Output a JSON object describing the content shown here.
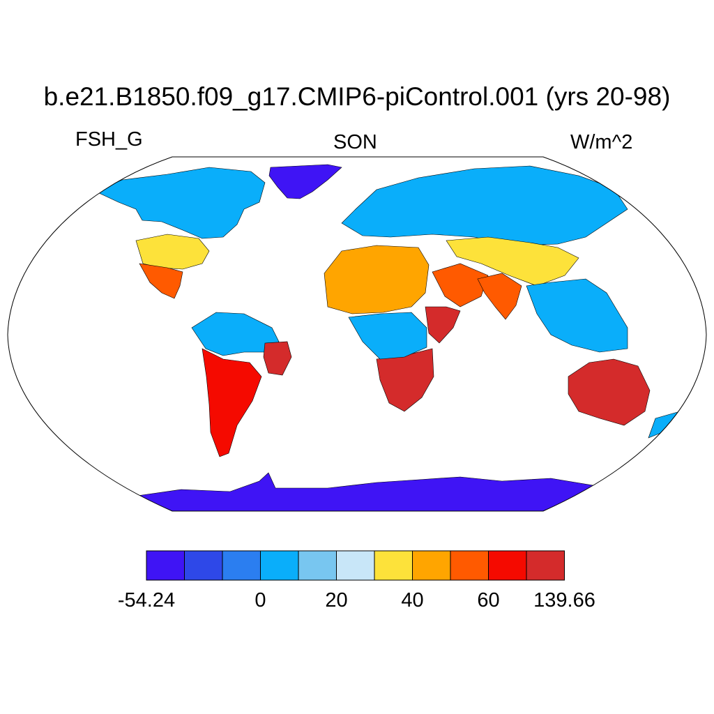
{
  "title": "b.e21.B1850.f09_g17.CMIP6-piControl.001 (yrs 20-98)",
  "variable": "FSH_G",
  "season": "SON",
  "units": "W/m^2",
  "map": {
    "projection": "Robinson",
    "ocean_color": "#ffffff",
    "coastline_color": "#000000",
    "regions": [
      {
        "name": "Greenland",
        "level": 0
      },
      {
        "name": "Antarctica",
        "level": 0
      },
      {
        "name": "Canada / Alaska",
        "level": 3
      },
      {
        "name": "Northern Eurasia",
        "level": 3
      },
      {
        "name": "Western United States",
        "level": 6
      },
      {
        "name": "Mexico",
        "level": 8
      },
      {
        "name": "Amazon",
        "level": 3
      },
      {
        "name": "Eastern Brazil",
        "level": 10
      },
      {
        "name": "Andes / Argentina",
        "level": 9
      },
      {
        "name": "Sahara",
        "level": 7
      },
      {
        "name": "Arabian Peninsula",
        "level": 8
      },
      {
        "name": "Horn of Africa",
        "level": 10
      },
      {
        "name": "Southern Africa",
        "level": 10
      },
      {
        "name": "Congo Basin",
        "level": 3
      },
      {
        "name": "Central Asia",
        "level": 6
      },
      {
        "name": "India",
        "level": 8
      },
      {
        "name": "Southeast Asia",
        "level": 3
      },
      {
        "name": "Australia",
        "level": 10
      },
      {
        "name": "New Zealand",
        "level": 3
      }
    ]
  },
  "colorbar": {
    "colors": [
      "#3f14f5",
      "#2e48e8",
      "#2b7ef0",
      "#0aaefa",
      "#78c6f0",
      "#c8e6f8",
      "#fde23a",
      "#ffa500",
      "#ff5a00",
      "#f50a00",
      "#d42b2b"
    ],
    "tick_labels": [
      {
        "label": "-54.24",
        "boundary": 0
      },
      {
        "label": "0",
        "boundary": 3
      },
      {
        "label": "20",
        "boundary": 5
      },
      {
        "label": "40",
        "boundary": 7
      },
      {
        "label": "60",
        "boundary": 9
      },
      {
        "label": "139.66",
        "boundary": 11
      }
    ]
  }
}
